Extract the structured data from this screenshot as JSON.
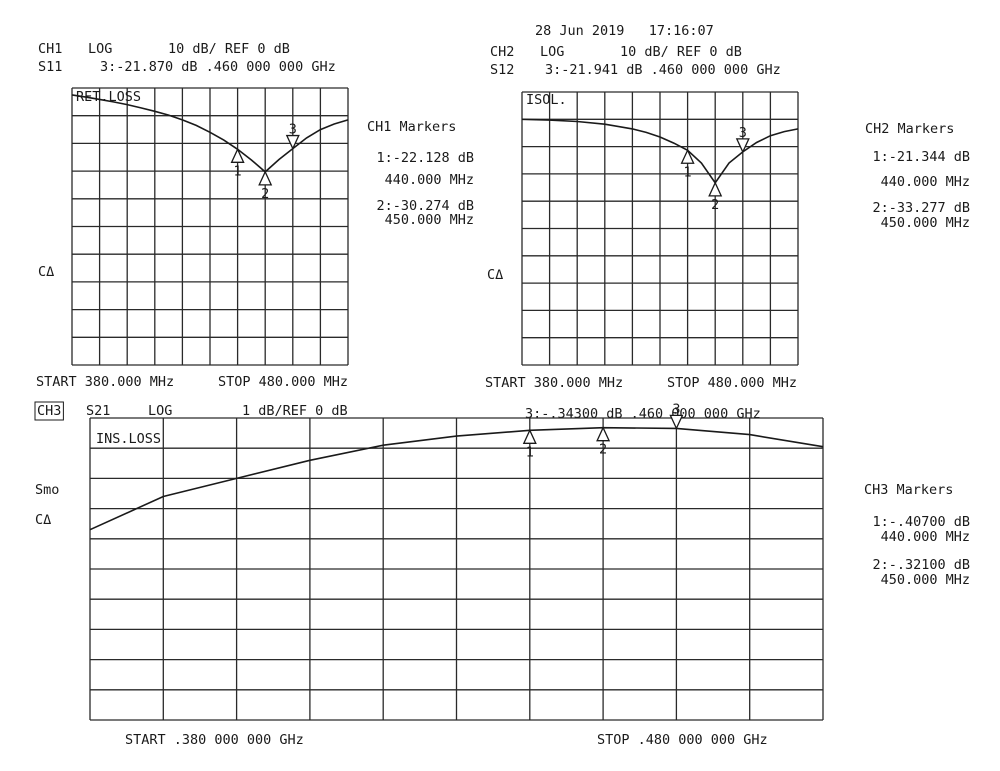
{
  "date": "28 Jun 2019   17:16:07",
  "chart_data": [
    {
      "type": "line",
      "channel": "CH1",
      "format": "LOG",
      "scale": "10 dB/ REF 0 dB",
      "param": "S11",
      "active_marker": "3:-21.870 dB .460 000 000 GHz",
      "trace_label": "RET.LOSS",
      "markers_title": "CH1 Markers",
      "marker_readouts": [
        "1:-22.128 dB",
        "440.000 MHz",
        "2:-30.274 dB",
        "450.000 MHz"
      ],
      "annotations": [
        "CΔ"
      ],
      "start": "START 380.000 MHz",
      "stop": "STOP 480.000 MHz",
      "color": "#1a1a1a",
      "x": [
        380,
        385,
        390,
        395,
        400,
        405,
        410,
        415,
        420,
        425,
        430,
        435,
        440,
        445,
        450,
        455,
        460,
        465,
        470,
        475,
        480
      ],
      "values": [
        -2.5,
        -3.3,
        -4.1,
        -5,
        -6,
        -7.2,
        -8.4,
        -9.8,
        -11.5,
        -13.5,
        -16,
        -18.8,
        -22.128,
        -26,
        -30.274,
        -25.8,
        -21.87,
        -18,
        -15,
        -13,
        -11.5
      ],
      "xlim": [
        380,
        480
      ],
      "ylim": [
        -100,
        0
      ],
      "xticks": [
        380,
        390,
        400,
        410,
        420,
        430,
        440,
        450,
        460,
        470,
        480
      ],
      "yticks": [
        -100,
        -90,
        -80,
        -70,
        -60,
        -50,
        -40,
        -30,
        -20,
        -10,
        0
      ],
      "grid": true,
      "markers": {
        "labels": [
          "1",
          "2",
          "3"
        ],
        "x": [
          440,
          450,
          460
        ],
        "values": [
          -22.128,
          -30.274,
          -21.87
        ]
      }
    },
    {
      "type": "line",
      "channel": "CH2",
      "format": "LOG",
      "scale": "10 dB/ REF 0 dB",
      "param": "S12",
      "active_marker": "3:-21.941 dB .460 000 000 GHz",
      "trace_label": "ISOL.",
      "markers_title": "CH2 Markers",
      "marker_readouts": [
        "1:-21.344 dB",
        "440.000 MHz",
        "2:-33.277 dB",
        "450.000 MHz"
      ],
      "annotations": [
        "CΔ"
      ],
      "start": "START 380.000 MHz",
      "stop": "STOP 480.000 MHz",
      "color": "#1a1a1a",
      "x": [
        380,
        390,
        400,
        410,
        420,
        425,
        430,
        435,
        440,
        445,
        450,
        455,
        460,
        465,
        470,
        475,
        480
      ],
      "values": [
        -10,
        -10.3,
        -10.8,
        -11.8,
        -13.5,
        -14.8,
        -16.5,
        -18.7,
        -21.344,
        -26,
        -33.277,
        -26,
        -21.941,
        -18.5,
        -16,
        -14.5,
        -13.5
      ],
      "xlim": [
        380,
        480
      ],
      "ylim": [
        -100,
        0
      ],
      "xticks": [
        380,
        390,
        400,
        410,
        420,
        430,
        440,
        450,
        460,
        470,
        480
      ],
      "yticks": [
        -100,
        -90,
        -80,
        -70,
        -60,
        -50,
        -40,
        -30,
        -20,
        -10,
        0
      ],
      "grid": true,
      "markers": {
        "labels": [
          "1",
          "2",
          "3"
        ],
        "x": [
          440,
          450,
          460
        ],
        "values": [
          -21.344,
          -33.277,
          -21.941
        ]
      }
    },
    {
      "type": "line",
      "channel": "CH3",
      "format": "LOG",
      "scale": "1 dB/REF 0 dB",
      "param": "S21",
      "active_marker": "3:-.34300 dB .460 000 000 GHz",
      "trace_label": "INS.LOSS",
      "markers_title": "CH3 Markers",
      "marker_readouts": [
        "1:-.40700 dB",
        "440.000 MHz",
        "2:-.32100 dB",
        "450.000 MHz"
      ],
      "annotations": [
        "Smo",
        "CΔ"
      ],
      "start": "START .380 000 000 GHz",
      "stop": "STOP .480 000 000 GHz",
      "color": "#1a1a1a",
      "x": [
        380,
        390,
        400,
        410,
        420,
        430,
        440,
        450,
        460,
        470,
        480
      ],
      "values": [
        -3.7,
        -2.6,
        -2.0,
        -1.4,
        -0.9,
        -0.6,
        -0.407,
        -0.321,
        -0.343,
        -0.55,
        -0.95
      ],
      "xlim": [
        380,
        480
      ],
      "ylim": [
        -10,
        0
      ],
      "xticks": [
        380,
        390,
        400,
        410,
        420,
        430,
        440,
        450,
        460,
        470,
        480
      ],
      "yticks": [
        -10,
        -9,
        -8,
        -7,
        -6,
        -5,
        -4,
        -3,
        -2,
        -1,
        0
      ],
      "grid": true,
      "markers": {
        "labels": [
          "1",
          "2",
          "3"
        ],
        "x": [
          440,
          450,
          460
        ],
        "values": [
          -0.407,
          -0.321,
          -0.343
        ]
      }
    }
  ]
}
